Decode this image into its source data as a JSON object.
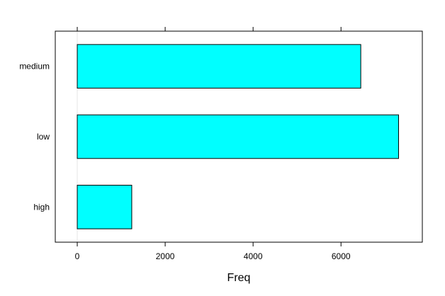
{
  "chart_data": {
    "type": "bar",
    "orientation": "horizontal",
    "categories": [
      "medium",
      "low",
      "high"
    ],
    "values": [
      6450,
      7310,
      1240
    ],
    "xlabel": "Freq",
    "ylabel": "",
    "xlim": [
      -500,
      7850
    ],
    "xticks": [
      0,
      2000,
      4000,
      6000
    ],
    "xtick_labels": [
      "0",
      "2000",
      "4000",
      "6000"
    ],
    "grid": false,
    "legend": "none",
    "colors": {
      "bar_fill": "#00FFFF",
      "bar_stroke": "#000000",
      "zero_line": "#E6E6E6",
      "frame": "#000000"
    }
  }
}
